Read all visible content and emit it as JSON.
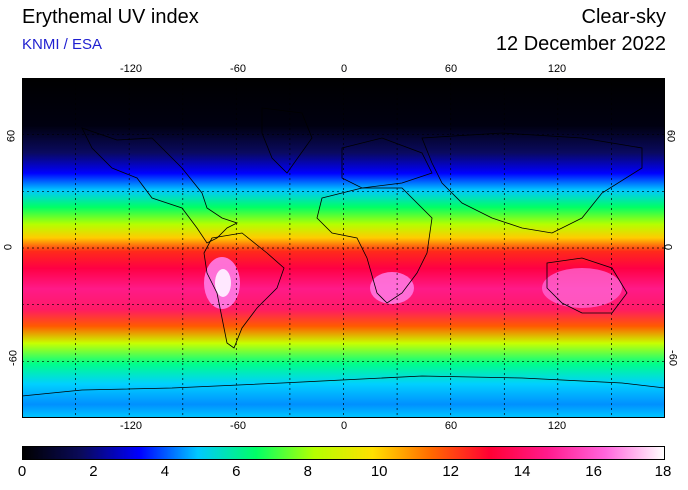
{
  "header": {
    "title": "Erythemal UV index",
    "subtitle": "KNMI / ESA",
    "condition": "Clear-sky",
    "date": "12 December 2022"
  },
  "axes": {
    "longitude_ticks": [
      "-120",
      "-60",
      "0",
      "60",
      "120"
    ],
    "latitude_ticks": [
      "60",
      "0",
      "-60"
    ],
    "lon_values": [
      -120,
      -60,
      0,
      60,
      120
    ],
    "lat_values": [
      60,
      0,
      -60
    ],
    "grid": "dotted every 30 degrees"
  },
  "colorbar": {
    "labels": [
      "0",
      "2",
      "4",
      "6",
      "8",
      "10",
      "12",
      "14",
      "16",
      "18"
    ],
    "min": 0,
    "max": 18,
    "colors": [
      "#000000",
      "#0a0a5a",
      "#0000ff",
      "#00c8ff",
      "#00ff66",
      "#b4ff00",
      "#ffe000",
      "#ff6a00",
      "#ff0033",
      "#ff1a8c",
      "#ff66dd",
      "#ffffff"
    ]
  },
  "map_colors": {
    "background": "#000000",
    "land_outline": "#000000",
    "grid_line": "#000000"
  }
}
